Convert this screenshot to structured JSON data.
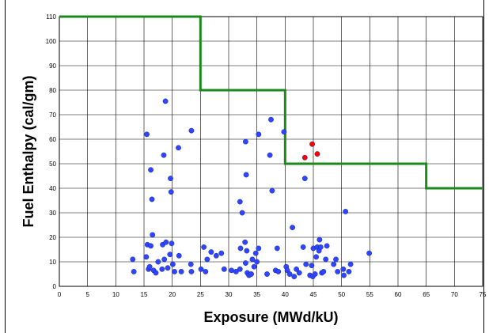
{
  "chart_data": {
    "type": "scatter",
    "title": "",
    "xlabel": "Exposure (MWd/kU)",
    "ylabel": "Fuel Enthalpy (cal/gm)",
    "xlim": [
      0,
      75
    ],
    "ylim": [
      0,
      110
    ],
    "x_ticks": [
      0,
      5,
      10,
      15,
      20,
      25,
      30,
      35,
      40,
      45,
      50,
      55,
      60,
      65,
      70,
      75
    ],
    "y_ticks": [
      0,
      10,
      20,
      30,
      40,
      50,
      60,
      70,
      80,
      90,
      100,
      110
    ],
    "grid": true,
    "legend": "none",
    "colors": {
      "limit": "#1a8a1a",
      "blue": "#2f45ff",
      "red": "#ff0000"
    },
    "limit_line": {
      "x": [
        0,
        25,
        25,
        40,
        40,
        65,
        65,
        75
      ],
      "y": [
        110,
        110,
        80,
        80,
        50,
        50,
        40,
        40
      ]
    },
    "series": [
      {
        "color": "blue",
        "points": [
          [
            15.5,
            62
          ],
          [
            18.8,
            75.5
          ],
          [
            23.4,
            63.5
          ],
          [
            21.1,
            56.5
          ],
          [
            18.5,
            53.5
          ],
          [
            16.2,
            47.5
          ],
          [
            19.7,
            44
          ],
          [
            19.8,
            38.5
          ],
          [
            16.4,
            35.5
          ],
          [
            16.5,
            21
          ],
          [
            18.3,
            17
          ],
          [
            19.9,
            17.5
          ],
          [
            15.6,
            17
          ],
          [
            16.2,
            16.5
          ],
          [
            18.9,
            18
          ],
          [
            13.0,
            11
          ],
          [
            13.2,
            6
          ],
          [
            15.4,
            12
          ],
          [
            15.8,
            7
          ],
          [
            16.0,
            8
          ],
          [
            16.7,
            6.5
          ],
          [
            17.1,
            5.5
          ],
          [
            17.5,
            10
          ],
          [
            18.2,
            7
          ],
          [
            18.6,
            11
          ],
          [
            19.2,
            7.5
          ],
          [
            19.6,
            13
          ],
          [
            20.1,
            9
          ],
          [
            20.4,
            6
          ],
          [
            21.2,
            12.5
          ],
          [
            21.6,
            6
          ],
          [
            23.3,
            9
          ],
          [
            23.4,
            6
          ],
          [
            25.1,
            7
          ],
          [
            25.6,
            16
          ],
          [
            25.9,
            6
          ],
          [
            26.2,
            11
          ],
          [
            26.9,
            14
          ],
          [
            27.8,
            12.5
          ],
          [
            28.7,
            13.5
          ],
          [
            29.2,
            7
          ],
          [
            30.5,
            6.5
          ],
          [
            31.3,
            6
          ],
          [
            32.0,
            7
          ],
          [
            32.1,
            15.5
          ],
          [
            32.0,
            34.5
          ],
          [
            32.4,
            30
          ],
          [
            33.0,
            59
          ],
          [
            33.1,
            45.5
          ],
          [
            32.9,
            18
          ],
          [
            33.2,
            14.5
          ],
          [
            33.0,
            9.5
          ],
          [
            33.3,
            5.5
          ],
          [
            33.6,
            4.5
          ],
          [
            34.0,
            5
          ],
          [
            34.2,
            11
          ],
          [
            34.5,
            8
          ],
          [
            34.8,
            13.5
          ],
          [
            35.0,
            10
          ],
          [
            35.3,
            15.5
          ],
          [
            35.3,
            62
          ],
          [
            37.3,
            53.5
          ],
          [
            37.5,
            68
          ],
          [
            37.7,
            39
          ],
          [
            36.8,
            5
          ],
          [
            38.3,
            6.5
          ],
          [
            38.6,
            15.5
          ],
          [
            38.8,
            6
          ],
          [
            39.8,
            63
          ],
          [
            40.2,
            8
          ],
          [
            40.4,
            6.5
          ],
          [
            40.8,
            5
          ],
          [
            41.3,
            24
          ],
          [
            41.6,
            4
          ],
          [
            42.0,
            7
          ],
          [
            42.5,
            5.5
          ],
          [
            43.2,
            16
          ],
          [
            43.5,
            44
          ],
          [
            43.7,
            9
          ],
          [
            44.4,
            4.5
          ],
          [
            44.7,
            8.5
          ],
          [
            44.9,
            4
          ],
          [
            45.0,
            15.5
          ],
          [
            45.3,
            5
          ],
          [
            45.5,
            12
          ],
          [
            45.7,
            16
          ],
          [
            46.0,
            14.5
          ],
          [
            46.1,
            19
          ],
          [
            46.3,
            16
          ],
          [
            46.5,
            5.5
          ],
          [
            46.8,
            6
          ],
          [
            47.2,
            11
          ],
          [
            47.4,
            16.5
          ],
          [
            48.6,
            9
          ],
          [
            49.0,
            11
          ],
          [
            49.3,
            6
          ],
          [
            50.3,
            7
          ],
          [
            50.4,
            4.5
          ],
          [
            50.7,
            30.5
          ],
          [
            51.3,
            6
          ],
          [
            51.6,
            9
          ],
          [
            54.9,
            13.5
          ]
        ]
      },
      {
        "color": "red",
        "points": [
          [
            43.5,
            52.5
          ],
          [
            44.8,
            58
          ],
          [
            45.7,
            54
          ]
        ]
      }
    ]
  }
}
